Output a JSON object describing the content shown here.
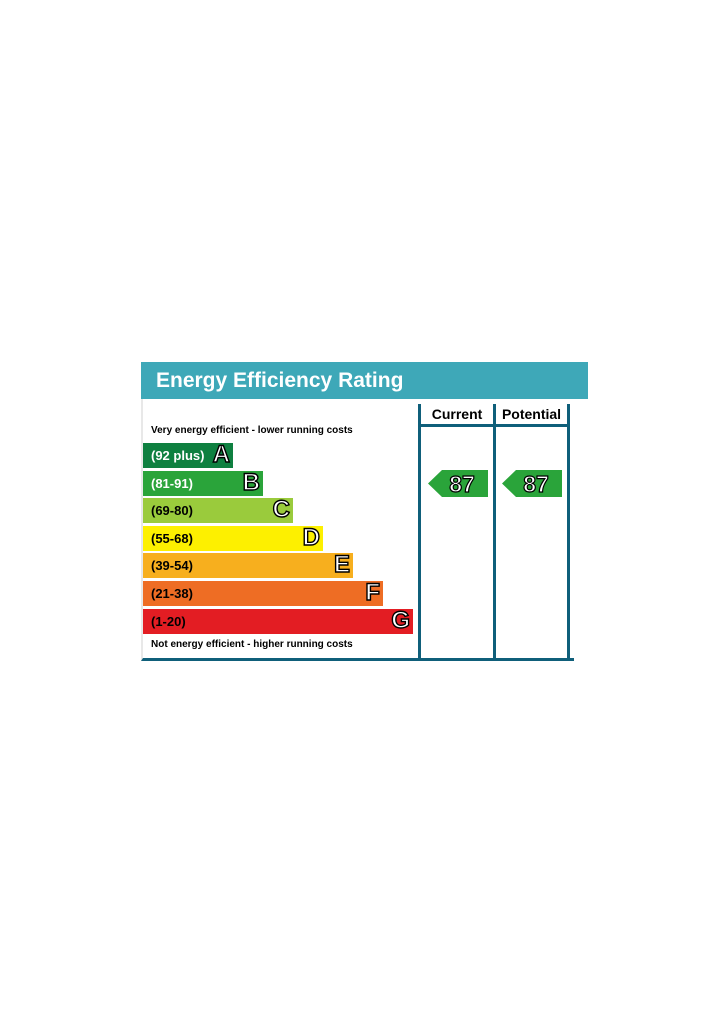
{
  "chart_data": {
    "type": "bar",
    "title": "Energy Efficiency Rating",
    "top_note": "Very energy efficient - lower running costs",
    "bottom_note": "Not energy efficient - higher running costs",
    "bands": [
      {
        "letter": "A",
        "range": "(92 plus)",
        "color": "#0e8040",
        "text_color": "#ffffff"
      },
      {
        "letter": "B",
        "range": "(81-91)",
        "color": "#2aa43a",
        "text_color": "#ffffff"
      },
      {
        "letter": "C",
        "range": "(69-80)",
        "color": "#9acb3c",
        "text_color": "#000000"
      },
      {
        "letter": "D",
        "range": "(55-68)",
        "color": "#fdf000",
        "text_color": "#000000"
      },
      {
        "letter": "E",
        "range": "(39-54)",
        "color": "#f7af1e",
        "text_color": "#000000"
      },
      {
        "letter": "F",
        "range": "(21-38)",
        "color": "#ee6d24",
        "text_color": "#000000"
      },
      {
        "letter": "G",
        "range": "(1-20)",
        "color": "#e31d23",
        "text_color": "#000000"
      }
    ],
    "columns": [
      {
        "label": "Current",
        "value": 87,
        "color": "#2aa43a"
      },
      {
        "label": "Potential",
        "value": 87,
        "color": "#2aa43a"
      }
    ]
  }
}
